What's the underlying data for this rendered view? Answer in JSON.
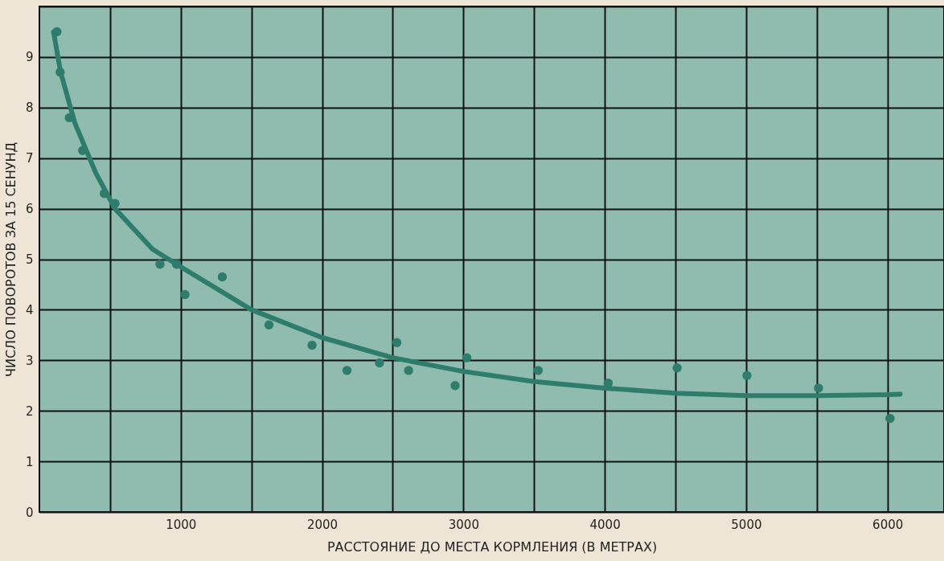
{
  "chart_data": {
    "type": "scatter",
    "xlabel": "РАССТОЯНИЕ ДО МЕСТА КОРМЛЕНИЯ (В МЕТРАХ)",
    "ylabel": "ЧИСЛО ПОВОРОТОВ ЗА 15 СЕНУНД",
    "xlim": [
      0,
      6400
    ],
    "ylim": [
      0,
      10
    ],
    "xticks": [
      {
        "value": 500,
        "label": null
      },
      1000,
      {
        "value": 1500,
        "label": null
      },
      2000,
      {
        "value": 2500,
        "label": null
      },
      3000,
      {
        "value": 3500,
        "label": null
      },
      4000,
      {
        "value": 4500,
        "label": null
      },
      5000,
      {
        "value": 5500,
        "label": null
      },
      6000
    ],
    "yticks": [
      0,
      1,
      2,
      3,
      4,
      5,
      6,
      7,
      8,
      9,
      {
        "value": 10,
        "label": null
      }
    ],
    "grid": true,
    "marker": "circle",
    "series": [
      {
        "color": "#2e7d6c",
        "x": [
          124,
          147,
          212,
          306,
          459,
          535,
          853,
          970,
          1030,
          1294,
          1624,
          1929,
          2176,
          2406,
          2529,
          2612,
          2941,
          3024,
          3529,
          4024,
          4512,
          5006,
          5512,
          6018
        ],
        "values": [
          9.5,
          8.7,
          7.8,
          7.15,
          6.3,
          6.1,
          4.9,
          4.9,
          4.3,
          4.65,
          3.7,
          3.3,
          2.8,
          2.95,
          3.35,
          2.8,
          2.5,
          3.05,
          2.8,
          2.55,
          2.85,
          2.7,
          2.45,
          1.85
        ]
      },
      {
        "type": "line",
        "color": "#2e7d6c",
        "marker": "none",
        "x": [
          100,
          150,
          250,
          400,
          535,
          800,
          1000,
          1500,
          2000,
          2500,
          3000,
          3500,
          4000,
          4500,
          5000,
          5500,
          6000,
          6090
        ],
        "values": [
          9.5,
          8.7,
          7.7,
          6.7,
          6.0,
          5.2,
          4.85,
          4.0,
          3.45,
          3.05,
          2.78,
          2.58,
          2.45,
          2.35,
          2.3,
          2.3,
          2.32,
          2.33
        ]
      }
    ]
  }
}
